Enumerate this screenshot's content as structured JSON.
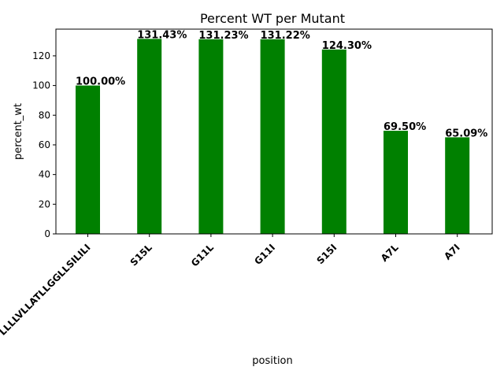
{
  "chart_data": {
    "type": "bar",
    "title": "Percent WT per Mutant",
    "xlabel": "position",
    "ylabel": "percent_wt",
    "categories": [
      "LLLLVLLATLLGGLLSILILI",
      "S15L",
      "G11L",
      "G11I",
      "S15I",
      "A7L",
      "A7I"
    ],
    "values": [
      100.0,
      131.43,
      131.23,
      131.22,
      124.3,
      69.5,
      65.09
    ],
    "data_labels": [
      "100.00%",
      "131.43%",
      "131.23%",
      "131.22%",
      "124.30%",
      "69.50%",
      "65.09%"
    ],
    "ylim": [
      0,
      138
    ],
    "yticks": [
      0,
      20,
      40,
      60,
      80,
      100,
      120
    ],
    "bar_color": "#008000",
    "grid": false,
    "legend": "none"
  }
}
